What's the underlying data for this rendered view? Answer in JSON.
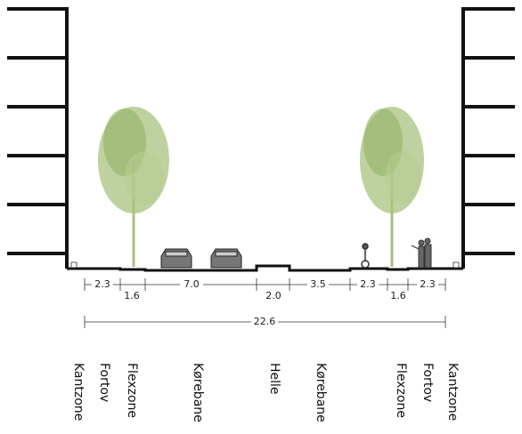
{
  "dimensions": [
    "2.3",
    "1.6",
    "7.0",
    "2.0",
    "3.5",
    "2.3",
    "1.6",
    "2.3"
  ],
  "total": "22.6",
  "zones": [
    "Kantzone",
    "Fortov",
    "Flexzone",
    "Kørebane",
    "Helle",
    "Kørebane",
    "Flexzone",
    "Fortov",
    "Kantzone"
  ]
}
